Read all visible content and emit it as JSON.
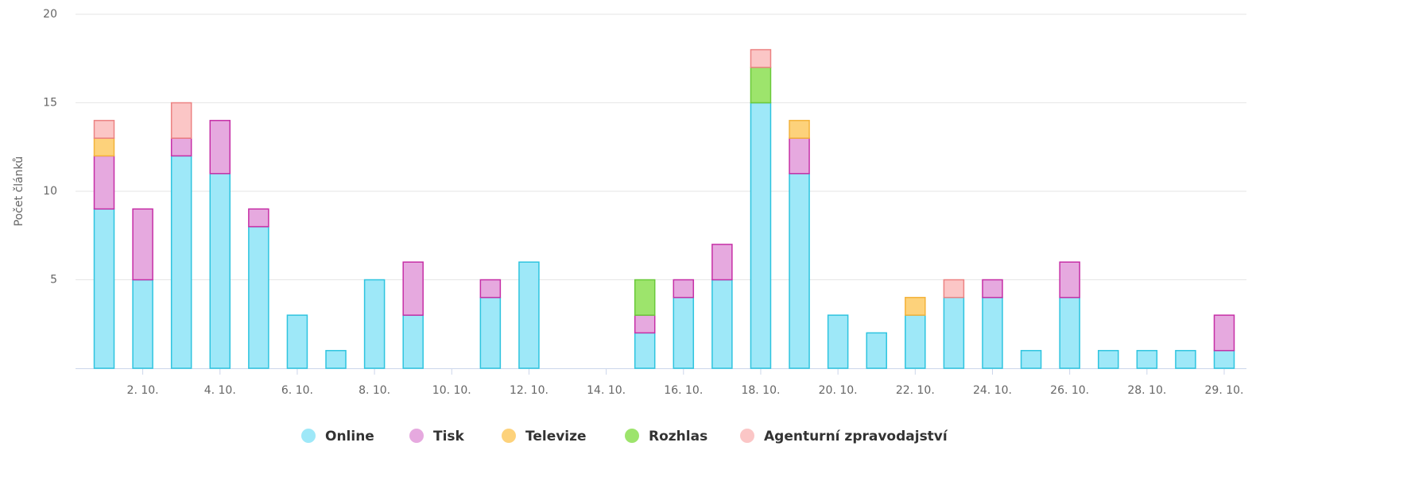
{
  "chart_data": {
    "type": "stacked_bar",
    "y_axis_label": "Počet článků",
    "categories": [
      null,
      "2. 10.",
      null,
      "4. 10.",
      null,
      "6. 10.",
      null,
      "8. 10.",
      null,
      "10. 10.",
      null,
      "12. 10.",
      null,
      "14. 10.",
      null,
      "16. 10.",
      null,
      "18. 10.",
      null,
      "20. 10.",
      null,
      "22. 10.",
      null,
      "24. 10.",
      null,
      "26. 10.",
      null,
      "28. 10.",
      null,
      "29. 10."
    ],
    "series": [
      {
        "name": "Online",
        "color": "#9ee8f8",
        "stroke": "#2ec4df",
        "values": [
          9,
          5,
          12,
          11,
          8,
          3,
          1,
          5,
          3,
          0,
          4,
          6,
          0,
          0,
          2,
          4,
          5,
          15,
          11,
          3,
          2,
          3,
          4,
          4,
          1,
          4,
          1,
          1,
          1,
          1
        ]
      },
      {
        "name": "Tisk",
        "color": "#e6a9df",
        "stroke": "#c62fa6",
        "values": [
          3,
          4,
          1,
          3,
          1,
          0,
          0,
          0,
          3,
          0,
          1,
          0,
          0,
          0,
          1,
          1,
          2,
          0,
          2,
          0,
          0,
          0,
          0,
          1,
          0,
          2,
          0,
          0,
          0,
          2
        ]
      },
      {
        "name": "Televize",
        "color": "#fdd27b",
        "stroke": "#f3b23a",
        "values": [
          1,
          0,
          0,
          0,
          0,
          0,
          0,
          0,
          0,
          0,
          0,
          0,
          0,
          0,
          0,
          0,
          0,
          0,
          1,
          0,
          0,
          1,
          0,
          0,
          0,
          0,
          0,
          0,
          0,
          0
        ]
      },
      {
        "name": "Rozhlas",
        "color": "#9de46c",
        "stroke": "#6ac93a",
        "values": [
          0,
          0,
          0,
          0,
          0,
          0,
          0,
          0,
          0,
          0,
          0,
          0,
          0,
          0,
          2,
          0,
          0,
          2,
          0,
          0,
          0,
          0,
          0,
          0,
          0,
          0,
          0,
          0,
          0,
          0
        ]
      },
      {
        "name": "Agenturní zpravodajství",
        "color": "#fbc6c6",
        "stroke": "#ec8282",
        "values": [
          1,
          0,
          2,
          0,
          0,
          0,
          0,
          0,
          0,
          0,
          0,
          0,
          0,
          0,
          0,
          0,
          0,
          1,
          0,
          0,
          0,
          0,
          1,
          0,
          0,
          0,
          0,
          0,
          0,
          0
        ]
      }
    ],
    "ylim": [
      0,
      20
    ],
    "yticks": [
      5,
      10,
      15,
      20
    ],
    "grid": true
  }
}
